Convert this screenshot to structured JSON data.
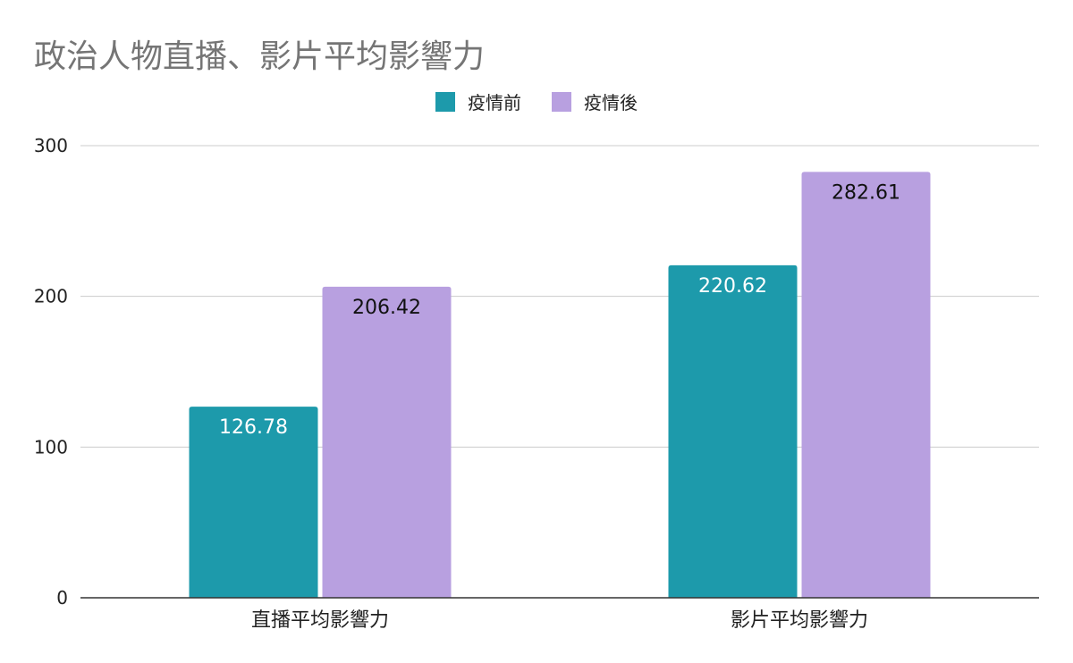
{
  "chart_data": {
    "type": "bar",
    "title": "政治人物直播、影片平均影響力",
    "categories": [
      "直播平均影響力",
      "影片平均影響力"
    ],
    "series": [
      {
        "name": "疫情前",
        "values": [
          126.78,
          220.62
        ],
        "color": "#1d9aab",
        "label_color": "#ffffff"
      },
      {
        "name": "疫情後",
        "values": [
          206.42,
          282.61
        ],
        "color": "#b8a0e0",
        "label_color": "#111111"
      }
    ],
    "data_labels": [
      [
        "126.78",
        "220.62"
      ],
      [
        "206.42",
        "282.61"
      ]
    ],
    "y_ticks": [
      0,
      100,
      200,
      300
    ],
    "ylim": [
      0,
      300
    ],
    "xlabel": "",
    "ylabel": "",
    "grid": true,
    "legend_position": "top-center",
    "gridline_color": "#cccccc",
    "axis_color": "#333333"
  }
}
